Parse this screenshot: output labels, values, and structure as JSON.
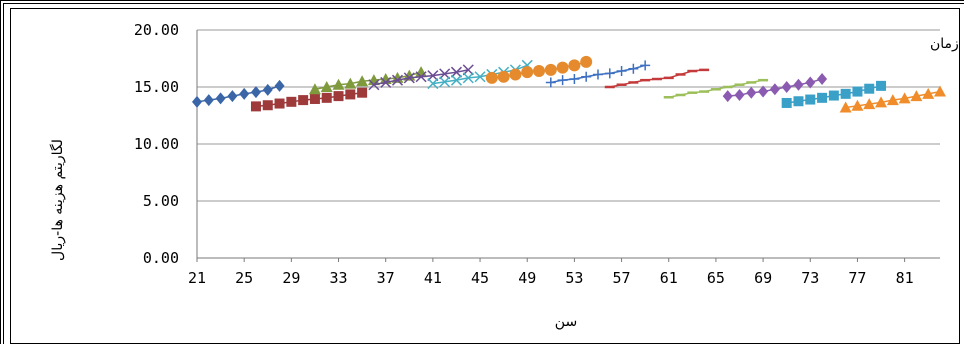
{
  "chart_data": {
    "type": "scatter",
    "title": "هزینه های خوراکی خانوارهای نمونه بر حسب طبقات سنی و در طول زمان",
    "xlabel": "سن",
    "ylabel": "لگاریتم هزینه ها-ریال",
    "ylim": [
      0,
      20
    ],
    "yticks": [
      "0.00",
      "5.00",
      "10.00",
      "15.00",
      "20.00"
    ],
    "xlim": [
      21,
      84
    ],
    "xticks": [
      "21",
      "25",
      "29",
      "33",
      "37",
      "41",
      "45",
      "49",
      "53",
      "57",
      "61",
      "65",
      "69",
      "73",
      "77",
      "81"
    ],
    "grid": "horizontal",
    "series": [
      {
        "color": "#3a66a8",
        "marker": "diamond",
        "x": [
          21,
          22,
          23,
          24,
          25,
          26,
          27,
          28
        ],
        "y": [
          13.7,
          13.85,
          14.0,
          14.2,
          14.4,
          14.55,
          14.75,
          15.1
        ]
      },
      {
        "color": "#9e3a3a",
        "marker": "square",
        "x": [
          26,
          27,
          28,
          29,
          30,
          31,
          32,
          33,
          34,
          35
        ],
        "y": [
          13.3,
          13.4,
          13.55,
          13.7,
          13.85,
          13.95,
          14.05,
          14.2,
          14.35,
          14.5
        ]
      },
      {
        "color": "#7f9a3c",
        "marker": "triangle",
        "x": [
          31,
          32,
          33,
          34,
          35,
          36,
          37,
          38,
          39,
          40
        ],
        "y": [
          14.8,
          15.0,
          15.2,
          15.3,
          15.5,
          15.6,
          15.7,
          15.8,
          16.0,
          16.3
        ]
      },
      {
        "color": "#6a4c93",
        "marker": "x",
        "x": [
          36,
          37,
          38,
          39,
          40,
          41,
          42,
          43,
          44
        ],
        "y": [
          15.2,
          15.4,
          15.6,
          15.8,
          15.9,
          16.0,
          16.15,
          16.3,
          16.5
        ]
      },
      {
        "color": "#45b0c4",
        "marker": "x",
        "x": [
          41,
          42,
          43,
          44,
          45,
          46,
          47,
          48,
          49
        ],
        "y": [
          15.3,
          15.45,
          15.6,
          15.8,
          15.9,
          16.1,
          16.3,
          16.5,
          16.9
        ]
      },
      {
        "color": "#e58a2d",
        "marker": "circle",
        "x": [
          46,
          47,
          48,
          49,
          50,
          51,
          52,
          53,
          54
        ],
        "y": [
          15.8,
          15.9,
          16.1,
          16.3,
          16.4,
          16.5,
          16.7,
          16.9,
          17.2
        ]
      },
      {
        "color": "#3d70c0",
        "marker": "plus",
        "x": [
          51,
          52,
          53,
          54,
          55,
          56,
          57,
          58,
          59
        ],
        "y": [
          15.4,
          15.6,
          15.7,
          15.9,
          16.1,
          16.2,
          16.4,
          16.6,
          16.9
        ]
      },
      {
        "color": "#c43a3a",
        "marker": "dash",
        "x": [
          56,
          57,
          58,
          59,
          60,
          61,
          62,
          63,
          64
        ],
        "y": [
          15.0,
          15.2,
          15.4,
          15.6,
          15.7,
          15.8,
          16.1,
          16.4,
          16.5
        ]
      },
      {
        "color": "#9cbf5a",
        "marker": "dash",
        "x": [
          61,
          62,
          63,
          64,
          65,
          66,
          67,
          68,
          69
        ],
        "y": [
          14.1,
          14.3,
          14.5,
          14.6,
          14.8,
          15.0,
          15.2,
          15.4,
          15.6
        ]
      },
      {
        "color": "#8a5bb0",
        "marker": "diamond",
        "x": [
          66,
          67,
          68,
          69,
          70,
          71,
          72,
          73,
          74
        ],
        "y": [
          14.2,
          14.3,
          14.5,
          14.6,
          14.8,
          15.0,
          15.2,
          15.4,
          15.7
        ]
      },
      {
        "color": "#3aa0c8",
        "marker": "square",
        "x": [
          71,
          72,
          73,
          74,
          75,
          76,
          77,
          78,
          79
        ],
        "y": [
          13.6,
          13.75,
          13.9,
          14.05,
          14.25,
          14.4,
          14.6,
          14.85,
          15.1
        ]
      },
      {
        "color": "#f08c2a",
        "marker": "triangle",
        "x": [
          76,
          77,
          78,
          79,
          80,
          81,
          82,
          83,
          84
        ],
        "y": [
          13.2,
          13.35,
          13.5,
          13.65,
          13.85,
          14.0,
          14.2,
          14.4,
          14.6
        ]
      }
    ]
  }
}
